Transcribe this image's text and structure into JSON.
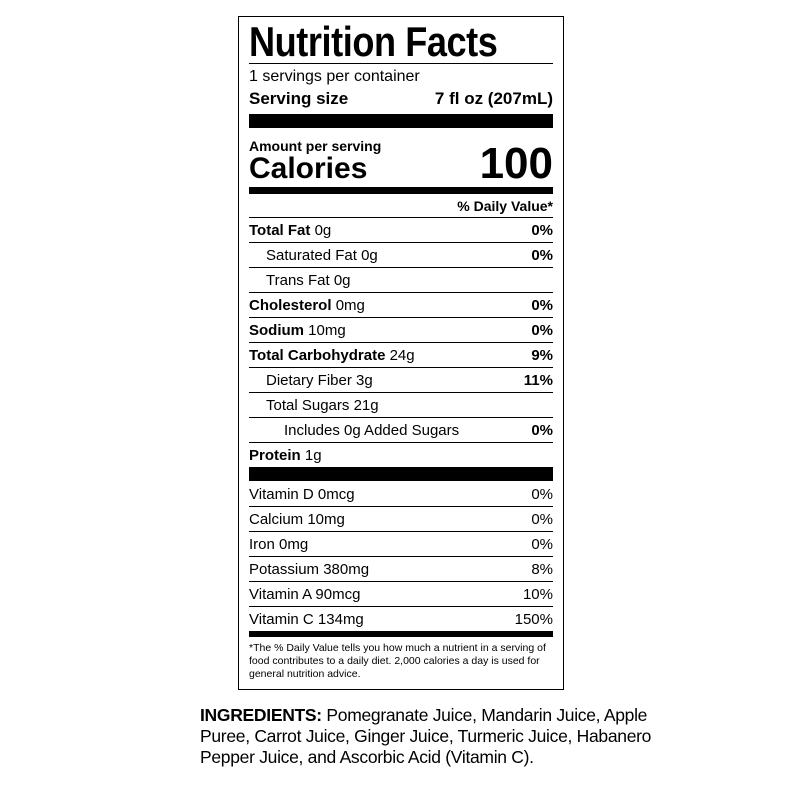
{
  "header": {
    "title": "Nutrition Facts"
  },
  "serving": {
    "per_container": "1 servings per container",
    "size_label": "Serving size",
    "size_value": "7 fl oz (207mL)"
  },
  "calories": {
    "amount_label": "Amount per serving",
    "label": "Calories",
    "value": "100"
  },
  "daily_value_header": "% Daily Value*",
  "nutrients": [
    {
      "name": "Total Fat",
      "amount": "0g",
      "dv": "0%"
    },
    {
      "name": "Saturated Fat",
      "amount": "0g",
      "dv": "0%"
    },
    {
      "name": "Trans Fat",
      "amount": "0g"
    },
    {
      "name": "Cholesterol",
      "amount": "0mg",
      "dv": "0%"
    },
    {
      "name": "Sodium",
      "amount": "10mg",
      "dv": "0%"
    },
    {
      "name": "Total Carbohydrate",
      "amount": "24g",
      "dv": "9%"
    },
    {
      "name": "Dietary Fiber",
      "amount": "3g",
      "dv": "11%"
    },
    {
      "name": "Total Sugars",
      "amount": "21g"
    },
    {
      "name": "Includes 0g Added Sugars",
      "dv": "0%"
    },
    {
      "name": "Protein",
      "amount": "1g"
    }
  ],
  "vitamins": [
    {
      "name": "Vitamin D 0mcg",
      "dv": "0%"
    },
    {
      "name": "Calcium 10mg",
      "dv": "0%"
    },
    {
      "name": "Iron 0mg",
      "dv": "0%"
    },
    {
      "name": "Potassium 380mg",
      "dv": "8%"
    },
    {
      "name": "Vitamin A 90mcg",
      "dv": "10%"
    },
    {
      "name": "Vitamin C 134mg",
      "dv": "150%"
    }
  ],
  "footnote": "*The % Daily Value tells you how much a nutrient in a serving of food contributes to a daily diet. 2,000 calories a day is used for general nutrition advice.",
  "ingredients": {
    "label": "INGREDIENTS:",
    "text": "Pomegranate Juice, Mandarin Juice, Apple Puree, Carrot Juice, Ginger Juice, Turmeric Juice, Habanero Pepper Juice, and Ascorbic Acid (Vitamin C)."
  }
}
